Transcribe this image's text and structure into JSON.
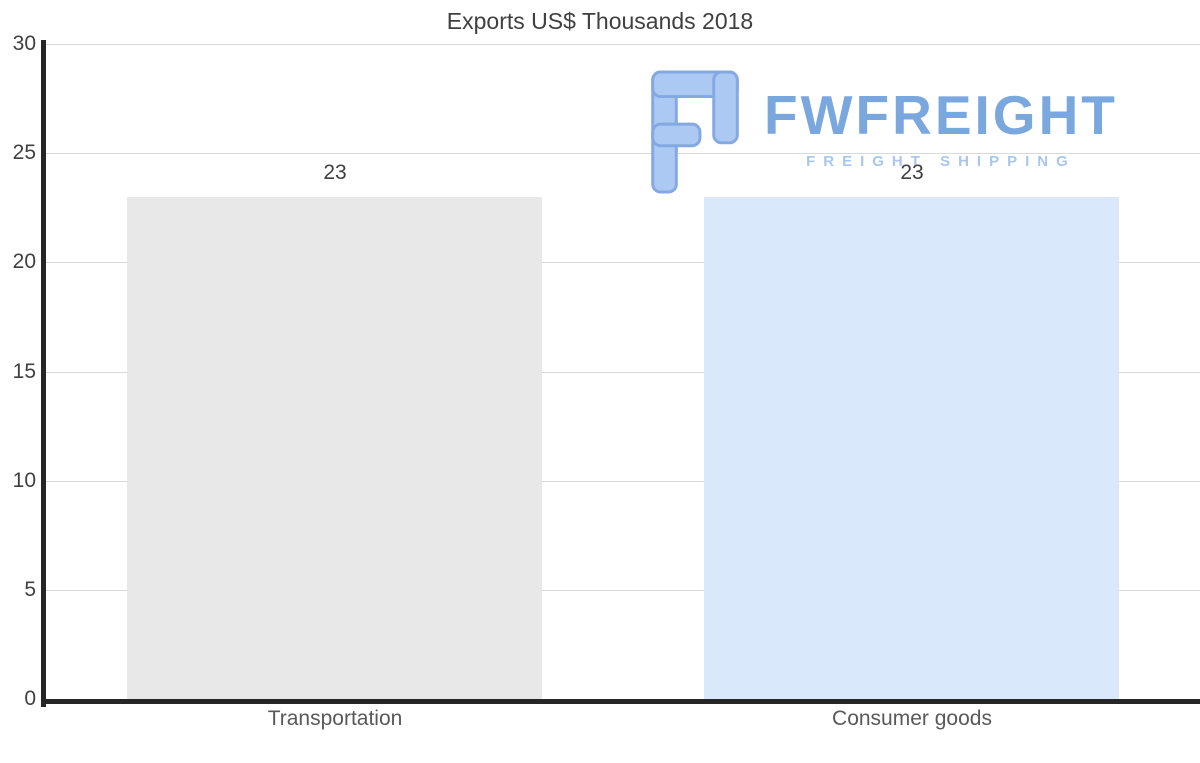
{
  "chart_data": {
    "type": "bar",
    "title": "Exports US$ Thousands 2018",
    "categories": [
      "Transportation",
      "Consumer goods"
    ],
    "values": [
      23,
      23
    ],
    "value_labels": [
      "23",
      "23"
    ],
    "bar_colors": [
      "#e8e8e8",
      "#d9e8fb"
    ],
    "ylim": [
      0,
      30
    ],
    "yticks": [
      0,
      5,
      10,
      15,
      20,
      25,
      30
    ],
    "grid": true,
    "legend": "none",
    "xlabel": "",
    "ylabel": ""
  },
  "watermark": {
    "brand": "FWFREIGHT",
    "tagline": "FREIGHT SHIPPING",
    "brand_color": "#79a7de",
    "tagline_color": "#a9c6ec",
    "logo_fill": "#abc9f3",
    "logo_stroke": "#84a9e2"
  },
  "colors": {
    "axis": "#262626",
    "gridline": "#d9d9d9",
    "title_text": "#404040",
    "tick_text": "#404040",
    "category_text": "#595959",
    "background": "#ffffff"
  }
}
